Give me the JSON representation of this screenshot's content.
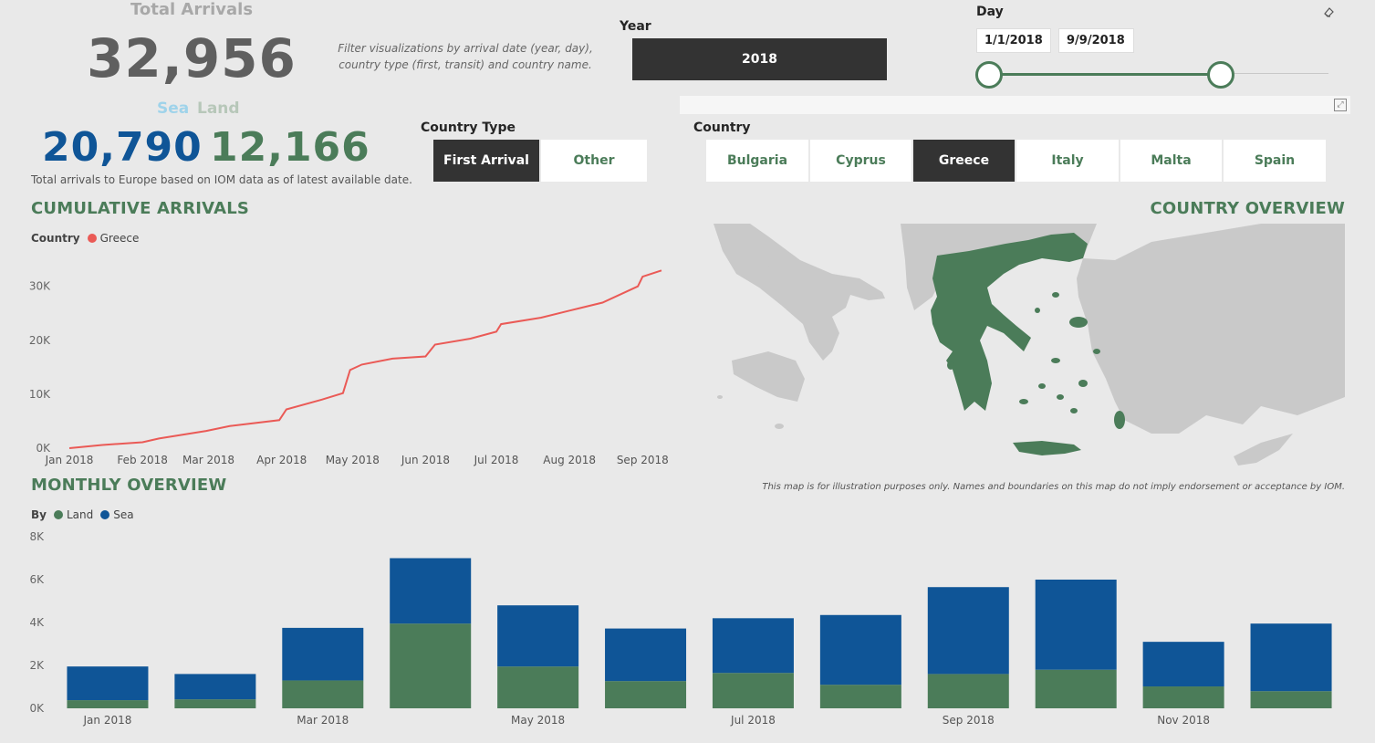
{
  "kpi": {
    "title": "Total Arrivals",
    "total": "32,956",
    "sea_label": "Sea",
    "land_label": "Land",
    "sea_value": "20,790",
    "land_value": "12,166",
    "note": "Total arrivals to Europe based on IOM data as of latest available date."
  },
  "filter_note": "Filter visualizations by arrival date (year, day), country type (first, transit) and country name.",
  "year_slicer": {
    "label": "Year",
    "value": "2018"
  },
  "day_slicer": {
    "label": "Day",
    "start": "1/1/2018",
    "end": "9/9/2018",
    "start_fraction": 0.0,
    "end_fraction": 0.68
  },
  "country_type": {
    "label": "Country Type",
    "options": [
      "First Arrival",
      "Other"
    ],
    "selected": "First Arrival"
  },
  "country": {
    "label": "Country",
    "options": [
      "Bulgaria",
      "Cyprus",
      "Greece",
      "Italy",
      "Malta",
      "Spain"
    ],
    "selected": "Greece"
  },
  "cumulative": {
    "title": "CUMULATIVE ARRIVALS",
    "legend_label": "Country",
    "legend_item": "Greece"
  },
  "country_overview": {
    "title": "COUNTRY OVERVIEW",
    "map_note": "This map is for illustration purposes only. Names and boundaries on this map do not imply endorsement or acceptance by IOM."
  },
  "monthly": {
    "title": "MONTHLY OVERVIEW",
    "legend_label": "By",
    "legend_land": "Land",
    "legend_sea": "Sea"
  },
  "colors": {
    "accent": "#4b7c59",
    "sea": "#0f5597",
    "land": "#4b7c59",
    "line": "#ea5a56",
    "selected_tile": "#333333"
  },
  "chart_data": [
    {
      "type": "line",
      "title": "CUMULATIVE ARRIVALS",
      "x_ticks": [
        "Jan 2018",
        "Feb 2018",
        "Mar 2018",
        "Apr 2018",
        "May 2018",
        "Jun 2018",
        "Jul 2018",
        "Aug 2018",
        "Sep 2018"
      ],
      "y_ticks": [
        "0K",
        "10K",
        "20K",
        "30K"
      ],
      "ylim": [
        0,
        33000
      ],
      "series": [
        {
          "name": "Greece",
          "color": "#ea5a56",
          "x": [
            "2018-01-01",
            "2018-01-15",
            "2018-02-01",
            "2018-02-08",
            "2018-02-28",
            "2018-03-10",
            "2018-03-31",
            "2018-04-03",
            "2018-04-18",
            "2018-04-27",
            "2018-04-30",
            "2018-05-05",
            "2018-05-18",
            "2018-06-01",
            "2018-06-05",
            "2018-06-20",
            "2018-07-01",
            "2018-07-03",
            "2018-07-20",
            "2018-08-01",
            "2018-08-15",
            "2018-08-30",
            "2018-09-01",
            "2018-09-09"
          ],
          "y": [
            0,
            600,
            1100,
            1800,
            3200,
            4100,
            5200,
            7200,
            9000,
            10200,
            14500,
            15500,
            16600,
            17000,
            19200,
            20300,
            21600,
            23000,
            24200,
            25500,
            27000,
            30000,
            31800,
            32956
          ]
        }
      ]
    },
    {
      "type": "bar",
      "stacked": true,
      "title": "MONTHLY OVERVIEW",
      "categories": [
        "Jan 2018",
        "Feb 2018",
        "Mar 2018",
        "Apr 2018",
        "May 2018",
        "Jun 2018",
        "Jul 2018",
        "Aug 2018",
        "Sep 2018",
        "Oct 2018",
        "Nov 2018",
        "Dec 2018"
      ],
      "tick_labels": [
        "Jan 2018",
        "",
        "Mar 2018",
        "",
        "May 2018",
        "",
        "Jul 2018",
        "",
        "Sep 2018",
        "",
        "Nov 2018",
        ""
      ],
      "y_ticks": [
        "0K",
        "2K",
        "4K",
        "6K",
        "8K"
      ],
      "ylim": [
        0,
        8000
      ],
      "series": [
        {
          "name": "Land",
          "color": "#4b7c59",
          "values": [
            380,
            420,
            1300,
            3950,
            1950,
            1270,
            1650,
            1100,
            1600,
            1800,
            1020,
            800
          ]
        },
        {
          "name": "Sea",
          "color": "#0f5597",
          "values": [
            1570,
            1180,
            2450,
            3050,
            2850,
            2450,
            2550,
            3250,
            4050,
            4200,
            2080,
            3150
          ]
        }
      ]
    }
  ]
}
